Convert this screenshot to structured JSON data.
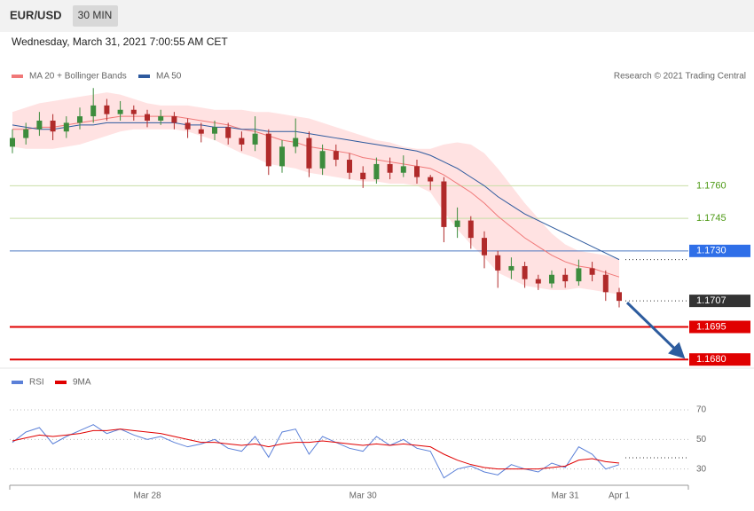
{
  "header": {
    "symbol": "EUR/USD",
    "interval": "30 MIN",
    "date": "Wednesday, March 31, 2021 7:00:55 AM CET",
    "credit": "Research © 2021 Trading Central"
  },
  "chart_data": [
    {
      "type": "candlestick",
      "ylim": [
        1.1676,
        1.1819
      ],
      "up_color": "#3d8c3d",
      "down_color": "#b02a2a",
      "open": [
        1.1778,
        1.1782,
        1.1786,
        1.179,
        1.1785,
        1.1789,
        1.1792,
        1.1797,
        1.1793,
        1.1795,
        1.1793,
        1.179,
        1.1792,
        1.1789,
        1.1786,
        1.1784,
        1.1787,
        1.1782,
        1.1779,
        1.1784,
        1.1769,
        1.1778,
        1.1782,
        1.1768,
        1.1776,
        1.1772,
        1.1766,
        1.1763,
        1.177,
        1.1766,
        1.1769,
        1.1764,
        1.1762,
        1.1741,
        1.1744,
        1.1736,
        1.1728,
        1.1721,
        1.1723,
        1.1717,
        1.1715,
        1.1719,
        1.1716,
        1.1722,
        1.1719,
        1.1711
      ],
      "high": [
        1.1786,
        1.1789,
        1.1794,
        1.1793,
        1.1792,
        1.1796,
        1.1805,
        1.18,
        1.1799,
        1.1797,
        1.1795,
        1.1795,
        1.1794,
        1.1791,
        1.1789,
        1.179,
        1.1789,
        1.1785,
        1.1792,
        1.1786,
        1.1781,
        1.1791,
        1.1785,
        1.1779,
        1.1779,
        1.1775,
        1.1769,
        1.1773,
        1.1773,
        1.1774,
        1.1772,
        1.1765,
        1.1764,
        1.175,
        1.1746,
        1.1739,
        1.173,
        1.1727,
        1.1725,
        1.1719,
        1.1721,
        1.1722,
        1.1726,
        1.1725,
        1.1721,
        1.1713
      ],
      "low": [
        1.1775,
        1.1779,
        1.1783,
        1.1781,
        1.1782,
        1.1786,
        1.1789,
        1.179,
        1.179,
        1.179,
        1.1787,
        1.1788,
        1.1786,
        1.1782,
        1.178,
        1.1781,
        1.1779,
        1.1776,
        1.1776,
        1.1765,
        1.1766,
        1.1775,
        1.1764,
        1.1765,
        1.1769,
        1.1763,
        1.1759,
        1.1761,
        1.1763,
        1.1764,
        1.1761,
        1.1758,
        1.1734,
        1.1736,
        1.1731,
        1.1722,
        1.1713,
        1.1717,
        1.1713,
        1.1712,
        1.1713,
        1.1713,
        1.1714,
        1.1716,
        1.1707,
        1.1704
      ],
      "close": [
        1.1782,
        1.1786,
        1.179,
        1.1785,
        1.1789,
        1.1792,
        1.1797,
        1.1793,
        1.1795,
        1.1793,
        1.179,
        1.1792,
        1.1789,
        1.1786,
        1.1784,
        1.1787,
        1.1782,
        1.1779,
        1.1784,
        1.1769,
        1.1778,
        1.1782,
        1.1768,
        1.1776,
        1.1772,
        1.1766,
        1.1763,
        1.177,
        1.1766,
        1.1769,
        1.1764,
        1.1762,
        1.1741,
        1.1744,
        1.1736,
        1.1728,
        1.1721,
        1.1723,
        1.1717,
        1.1715,
        1.1719,
        1.1716,
        1.1722,
        1.1719,
        1.1711,
        1.1707
      ],
      "overlays": [
        {
          "name": "MA 20 + Bollinger Bands",
          "color": "#f07878",
          "band_color": "#ffd6d6",
          "values": [
            1.1786,
            1.1786,
            1.1787,
            1.1787,
            1.1788,
            1.1789,
            1.179,
            1.1791,
            1.1792,
            1.1792,
            1.1792,
            1.1792,
            1.1792,
            1.1791,
            1.179,
            1.1789,
            1.1788,
            1.1786,
            1.1785,
            1.1783,
            1.1781,
            1.178,
            1.1778,
            1.1777,
            1.1776,
            1.1775,
            1.1773,
            1.1772,
            1.1771,
            1.177,
            1.1769,
            1.1768,
            1.1765,
            1.1761,
            1.1757,
            1.1752,
            1.1746,
            1.1741,
            1.1736,
            1.1732,
            1.1728,
            1.1725,
            1.1723,
            1.1722,
            1.172,
            1.1718
          ],
          "upper": [
            1.1794,
            1.1796,
            1.1798,
            1.1799,
            1.18,
            1.1801,
            1.1802,
            1.1803,
            1.1802,
            1.18,
            1.1798,
            1.1797,
            1.1797,
            1.1797,
            1.1796,
            1.1795,
            1.1795,
            1.1795,
            1.1794,
            1.1794,
            1.1793,
            1.1792,
            1.1791,
            1.1789,
            1.1787,
            1.1785,
            1.1783,
            1.1781,
            1.178,
            1.1778,
            1.1777,
            1.1777,
            1.1779,
            1.178,
            1.1779,
            1.1775,
            1.1768,
            1.176,
            1.1752,
            1.1745,
            1.1738,
            1.1733,
            1.173,
            1.1729,
            1.1728,
            1.1726
          ],
          "lower": [
            1.1778,
            1.1777,
            1.1777,
            1.1777,
            1.1778,
            1.1779,
            1.1781,
            1.1783,
            1.1785,
            1.1786,
            1.1786,
            1.1786,
            1.1786,
            1.1785,
            1.1783,
            1.1781,
            1.1778,
            1.1775,
            1.1773,
            1.177,
            1.1769,
            1.1768,
            1.1766,
            1.1765,
            1.1764,
            1.1763,
            1.1762,
            1.1762,
            1.1761,
            1.1761,
            1.176,
            1.1757,
            1.1748,
            1.174,
            1.1733,
            1.1727,
            1.172,
            1.1717,
            1.1714,
            1.1713,
            1.1712,
            1.1712,
            1.1713,
            1.1712,
            1.1711,
            1.171
          ]
        },
        {
          "name": "MA 50",
          "color": "#2e5a9e",
          "values": [
            1.1788,
            1.1787,
            1.1786,
            1.1786,
            1.1787,
            1.1788,
            1.1788,
            1.1789,
            1.1789,
            1.1789,
            1.1789,
            1.1789,
            1.1789,
            1.1788,
            1.1788,
            1.1787,
            1.1787,
            1.1786,
            1.1786,
            1.1785,
            1.1785,
            1.1785,
            1.1784,
            1.1783,
            1.1782,
            1.1781,
            1.178,
            1.1779,
            1.1778,
            1.1777,
            1.1776,
            1.1774,
            1.1771,
            1.1768,
            1.1764,
            1.176,
            1.1755,
            1.1751,
            1.1747,
            1.1744,
            1.1741,
            1.1738,
            1.1735,
            1.1732,
            1.1729,
            1.1726
          ]
        }
      ],
      "levels": [
        {
          "value": 1.176,
          "label": "1.1760",
          "color": "#c8dea6",
          "text_color": "#4e9a16",
          "line": "solid"
        },
        {
          "value": 1.1745,
          "label": "1.1745",
          "color": "#c8dea6",
          "text_color": "#4e9a16",
          "line": "solid"
        },
        {
          "value": 1.173,
          "label": "1.1730",
          "color": "#4a76c0",
          "box": "#2f6fe8",
          "line": "solid"
        },
        {
          "value": 1.1707,
          "label": "1.1707",
          "color": "#333333",
          "box": "#333333",
          "line": "dotted"
        },
        {
          "value": 1.1695,
          "label": "1.1695",
          "color": "#e00000",
          "box": "#e00000",
          "line": "thick"
        },
        {
          "value": 1.168,
          "label": "1.1680",
          "color": "#e00000",
          "box": "#e00000",
          "line": "thick"
        }
      ]
    },
    {
      "type": "line",
      "categories": [
        null,
        null,
        null,
        null,
        null,
        null,
        null,
        null,
        null,
        null,
        "Mar 28",
        null,
        null,
        null,
        null,
        null,
        null,
        null,
        null,
        null,
        null,
        null,
        null,
        null,
        null,
        null,
        "Mar 30",
        null,
        null,
        null,
        null,
        null,
        null,
        null,
        null,
        null,
        null,
        null,
        null,
        null,
        null,
        "Mar 31",
        null,
        null,
        null,
        "Apr 1"
      ],
      "ylim": [
        19,
        82
      ],
      "yticks": [
        70,
        50,
        30
      ],
      "series": [
        {
          "name": "RSI",
          "color": "#5b80d8",
          "values": [
            48,
            55,
            58,
            47,
            52,
            56,
            60,
            54,
            57,
            53,
            50,
            52,
            48,
            45,
            47,
            50,
            44,
            42,
            52,
            38,
            55,
            57,
            40,
            52,
            48,
            44,
            42,
            52,
            46,
            50,
            44,
            42,
            24,
            30,
            32,
            28,
            26,
            33,
            30,
            28,
            34,
            31,
            45,
            40,
            30,
            33
          ]
        },
        {
          "name": "9MA",
          "color": "#e00000",
          "values": [
            49,
            51,
            53,
            52,
            53,
            54,
            56,
            56,
            57,
            56,
            55,
            54,
            52,
            50,
            48,
            48,
            47,
            46,
            47,
            45,
            47,
            48,
            48,
            49,
            48,
            47,
            46,
            47,
            46,
            47,
            46,
            45,
            40,
            36,
            33,
            31,
            30,
            30,
            30,
            30,
            31,
            32,
            36,
            37,
            35,
            34
          ]
        }
      ]
    }
  ]
}
